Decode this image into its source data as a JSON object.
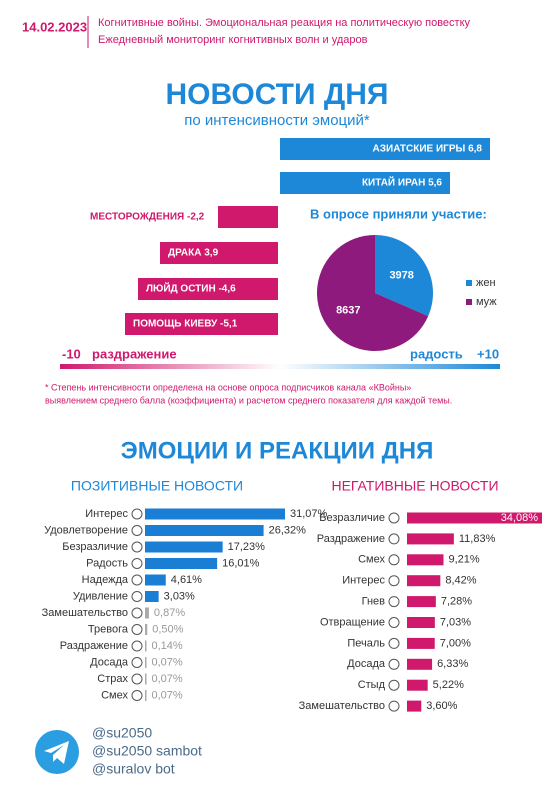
{
  "header": {
    "date": "14.02.2023",
    "lines": [
      "Когнитивные войны. Эмоциональная реакция на политическую повестку",
      "Ежедневный мониторинг когнитивных волн и ударов"
    ]
  },
  "news": {
    "title": "НОВОСТИ ДНЯ",
    "subtitle": "по интенсивности эмоций*",
    "items": [
      {
        "label": "АЗИАТСКИЕ ИГРЫ 6,8",
        "color": "#1e88d8"
      },
      {
        "label": "КИТАЙ ИРАН 5,6",
        "color": "#1e88d8"
      },
      {
        "label": "МЕСТОРОЖДЕНИЯ -2,2",
        "color": "#d0186c"
      },
      {
        "label": "ДРАКА 3,9",
        "color": "#d0186c"
      },
      {
        "label": "ЛЮЙД ОСТИН -4,6",
        "color": "#d0186c"
      },
      {
        "label": "ПОМОЩЬ КИЕВУ -5,1",
        "color": "#d0186c"
      }
    ],
    "scale": {
      "left_value": "-10",
      "left_label": "раздражение",
      "right_label": "радость",
      "right_value": "+10"
    },
    "footnote": [
      "* Степень интенсивности определена на основе опроса подписчиков канала «КВойны»",
      "выявлением среднего балла (коэффициента) и расчетом среднего показателя для каждой темы."
    ]
  },
  "chart_data": [
    {
      "type": "pie",
      "title": "В опросе приняли участие:",
      "categories": [
        "жен",
        "муж"
      ],
      "values": [
        3978,
        8637
      ],
      "colors": [
        "#1e88d8",
        "#8e1a7e"
      ]
    },
    {
      "type": "bar",
      "title": "ПОЗИТИВНЫЕ НОВОСТИ",
      "categories": [
        "Интерес",
        "Удовлетворение",
        "Безразличие",
        "Радость",
        "Надежда",
        "Удивление",
        "Замешательство",
        "Тревога",
        "Раздражение",
        "Досада",
        "Страх",
        "Смех"
      ],
      "values": [
        31.07,
        26.32,
        17.23,
        16.01,
        4.61,
        3.03,
        0.87,
        0.5,
        0.14,
        0.07,
        0.07,
        0.07
      ],
      "value_labels": [
        "31,07%",
        "26,32%",
        "17,23%",
        "16,01%",
        "4,61%",
        "3,03%",
        "0,87%",
        "0,50%",
        "0,14%",
        "0,07%",
        "0,07%",
        "0,07%"
      ],
      "colors": [
        "#1a7fd4",
        "#1a7fd4",
        "#1a7fd4",
        "#1a7fd4",
        "#1a7fd4",
        "#1a7fd4",
        "#aaaaaa",
        "#aaaaaa",
        "#aaaaaa",
        "#aaaaaa",
        "#aaaaaa",
        "#aaaaaa"
      ]
    },
    {
      "type": "bar",
      "title": "НЕГАТИВНЫЕ НОВОСТИ",
      "categories": [
        "Безразличие",
        "Раздражение",
        "Смех",
        "Интерес",
        "Гнев",
        "Отвращение",
        "Печаль",
        "Досада",
        "Стыд",
        "Замешательство"
      ],
      "values": [
        34.08,
        11.83,
        9.21,
        8.42,
        7.28,
        7.03,
        7.0,
        6.33,
        5.22,
        3.6
      ],
      "value_labels": [
        "34,08%",
        "11,83%",
        "9,21%",
        "8,42%",
        "7,28%",
        "7,03%",
        "7,00%",
        "6,33%",
        "5,22%",
        "3,60%"
      ],
      "colors": [
        "#d0186c",
        "#d0186c",
        "#d0186c",
        "#d0186c",
        "#d0186c",
        "#d0186c",
        "#d0186c",
        "#d0186c",
        "#d0186c",
        "#d0186c"
      ]
    }
  ],
  "section_title": "ЭМОЦИИ И РЕАКЦИИ ДНЯ",
  "footer": {
    "handles": [
      "@su2050",
      "@su2050 sambot",
      "@suralov bot"
    ]
  }
}
